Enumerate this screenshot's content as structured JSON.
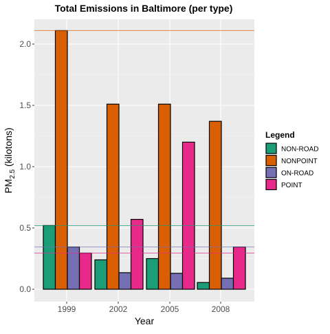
{
  "chart_data": {
    "type": "bar",
    "title": "Total Emissions in Baltimore (per type)",
    "xlabel": "Year",
    "ylabel": {
      "prefix": "PM",
      "subscript": "2.5",
      "suffix": " (kilotons)"
    },
    "ylim": [
      0,
      2.2
    ],
    "yticks": [
      "0.0",
      "0.5",
      "1.0",
      "1.5",
      "2.0"
    ],
    "categories": [
      "1999",
      "2002",
      "2005",
      "2008"
    ],
    "series": [
      {
        "name": "NON-ROAD",
        "color": "#1B9E77",
        "values": [
          0.52,
          0.24,
          0.25,
          0.055
        ]
      },
      {
        "name": "NONPOINT",
        "color": "#D95F02",
        "values": [
          2.11,
          1.51,
          1.51,
          1.37
        ]
      },
      {
        "name": "ON-ROAD",
        "color": "#7570B3",
        "values": [
          0.345,
          0.135,
          0.13,
          0.09
        ]
      },
      {
        "name": "POINT",
        "color": "#E7298A",
        "values": [
          0.295,
          0.57,
          1.2,
          0.345
        ]
      }
    ],
    "reference_lines": [
      {
        "series": "NONPOINT",
        "value": 2.11
      },
      {
        "series": "NON-ROAD",
        "value": 0.52
      },
      {
        "series": "ON-ROAD",
        "value": 0.345
      },
      {
        "series": "POINT",
        "value": 0.295
      }
    ],
    "legend": {
      "title": "Legend",
      "position": "right"
    },
    "grid": true,
    "background": "#EBEBEB"
  }
}
